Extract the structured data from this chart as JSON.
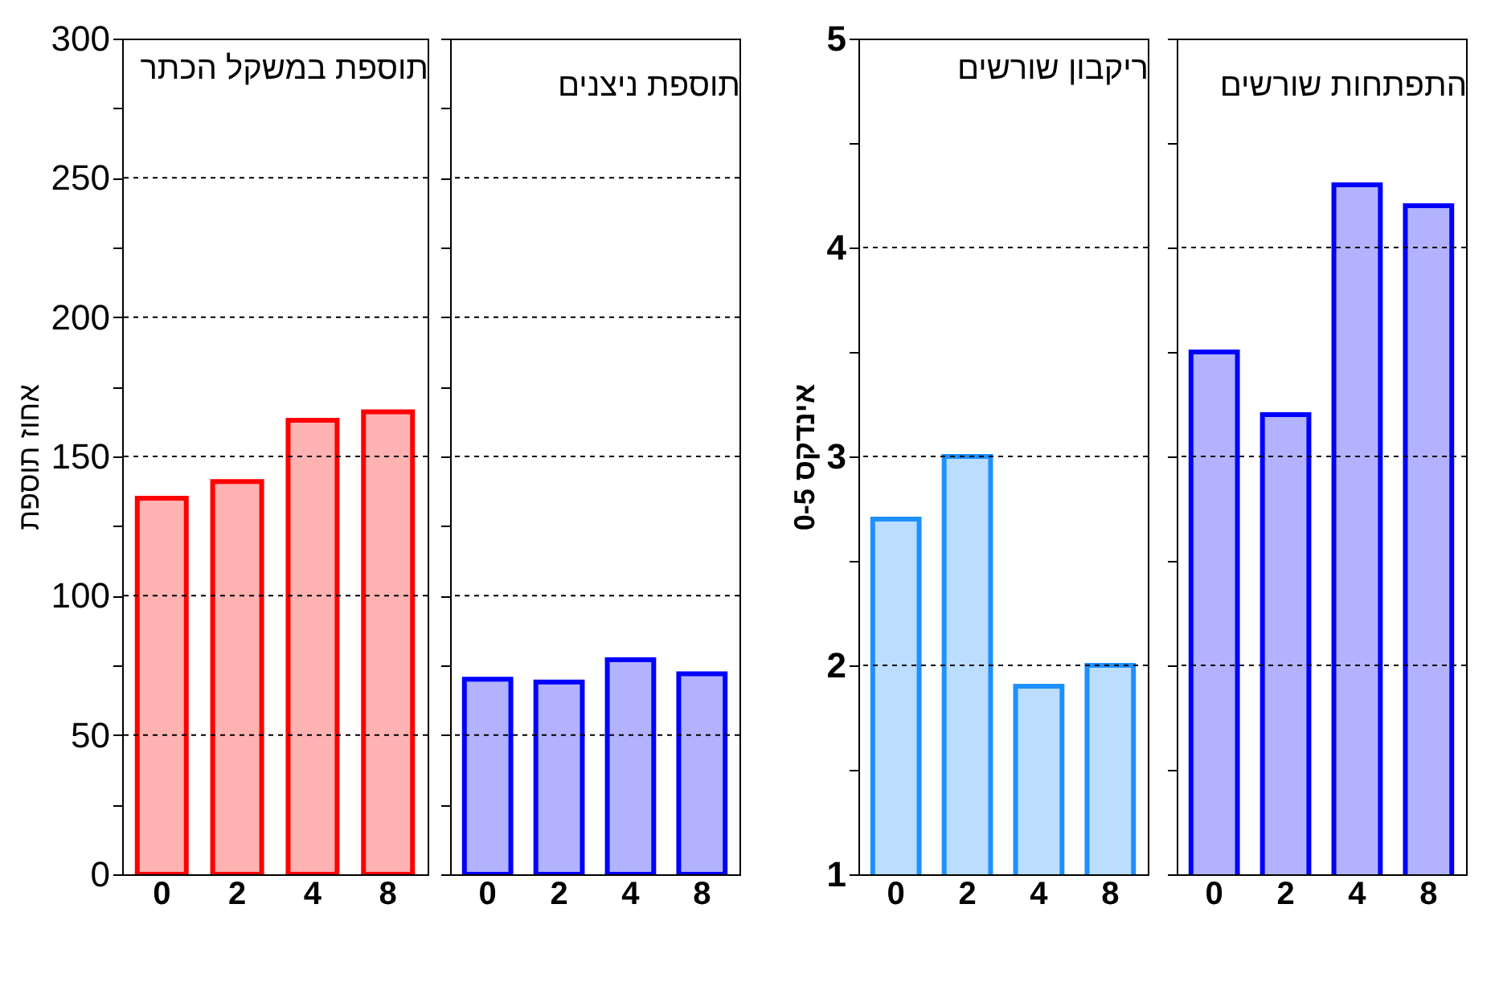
{
  "chart_data": [
    {
      "type": "bar",
      "title": "תוספת במשקל הכתר",
      "ylabel": "אחוז תוספת",
      "categories": [
        "0",
        "2",
        "4",
        "8"
      ],
      "series": [
        {
          "color": "#ff0000",
          "values": [
            135,
            141,
            163,
            166
          ]
        }
      ],
      "ylim": [
        0,
        300
      ],
      "yticks": [
        0,
        {
          "value": 25,
          "label": null
        },
        50,
        {
          "value": 75,
          "label": null
        },
        100,
        {
          "value": 125,
          "label": null
        },
        150,
        {
          "value": 175,
          "label": null
        },
        200,
        {
          "value": 225,
          "label": null
        },
        250,
        {
          "value": 275,
          "label": null
        },
        300
      ],
      "grid": "y"
    },
    {
      "type": "bar",
      "title": "תוספת ניצנים",
      "categories": [
        "0",
        "2",
        "4",
        "8"
      ],
      "series": [
        {
          "color": "#0000ff",
          "values": [
            70,
            69,
            77,
            72
          ]
        }
      ],
      "ylim": [
        0,
        300
      ],
      "yticks": [
        0,
        {
          "value": 25,
          "label": null
        },
        50,
        {
          "value": 75,
          "label": null
        },
        100,
        {
          "value": 125,
          "label": null
        },
        150,
        {
          "value": 175,
          "label": null
        },
        200,
        {
          "value": 225,
          "label": null
        },
        250,
        {
          "value": 275,
          "label": null
        },
        300
      ],
      "grid": "y",
      "tick_labels": "x"
    },
    {
      "type": "bar",
      "title": "ריקבון שורשים",
      "ylabel": "אינדקס 0-5",
      "categories": [
        "0",
        "2",
        "4",
        "8"
      ],
      "series": [
        {
          "color": "#1e90ff",
          "values": [
            2.7,
            3.0,
            1.9,
            2.0
          ]
        }
      ],
      "ylim": [
        1,
        5
      ],
      "yticks": [
        1,
        {
          "value": 1.5,
          "label": null
        },
        2,
        {
          "value": 2.5,
          "label": null
        },
        3,
        {
          "value": 3.5,
          "label": null
        },
        4,
        {
          "value": 4.5,
          "label": null
        },
        5
      ],
      "grid": "y"
    },
    {
      "type": "bar",
      "title": "התפתחות שורשים",
      "categories": [
        "0",
        "2",
        "4",
        "8"
      ],
      "series": [
        {
          "color": "#0000ff",
          "values": [
            3.5,
            3.2,
            4.3,
            4.2
          ]
        }
      ],
      "ylim": [
        1,
        5
      ],
      "yticks": [
        1,
        {
          "value": 1.5,
          "label": null
        },
        2,
        {
          "value": 2.5,
          "label": null
        },
        3,
        {
          "value": 3.5,
          "label": null
        },
        4,
        {
          "value": 4.5,
          "label": null
        },
        5
      ],
      "grid": "y",
      "tick_labels": "x"
    }
  ]
}
